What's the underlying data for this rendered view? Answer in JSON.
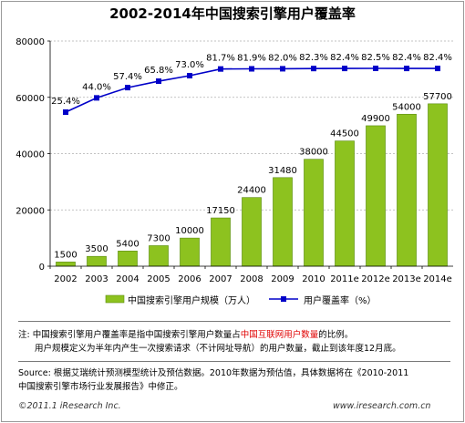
{
  "chart_data": {
    "type": "bar",
    "title": "2002-2014年中国搜索引擎用户覆盖率",
    "categories": [
      "2002",
      "2003",
      "2004",
      "2005",
      "2006",
      "2007",
      "2008",
      "2009",
      "2010",
      "2011e",
      "2012e",
      "2013e",
      "2014e"
    ],
    "series": [
      {
        "name": "中国搜索引擎用户规模（万人）",
        "type": "bar",
        "color": "#8dc21f",
        "values": [
          1500,
          3500,
          5400,
          7300,
          10000,
          17150,
          24400,
          31480,
          38000,
          44500,
          49900,
          54000,
          57700
        ],
        "labels": [
          "1500",
          "3500",
          "5400",
          "7300",
          "10000",
          "17150",
          "24400",
          "31480",
          "38000",
          "44500",
          "49900",
          "54000",
          "57700"
        ]
      },
      {
        "name": "用户覆盖率（%）",
        "type": "line",
        "color": "#0000c8",
        "values": [
          25.4,
          44.0,
          57.4,
          65.8,
          73.0,
          81.7,
          81.9,
          82.0,
          82.3,
          82.4,
          82.5,
          82.4,
          82.4
        ],
        "labels": [
          "25.4%",
          "44.0%",
          "57.4%",
          "65.8%",
          "73.0%",
          "81.7%",
          "81.9%",
          "82.0%",
          "82.3%",
          "82.4%",
          "82.5%",
          "82.4%",
          "82.4%"
        ]
      }
    ],
    "ylim": [
      0,
      80000
    ],
    "yticks": [
      "0",
      "20000",
      "40000",
      "60000",
      "80000"
    ],
    "grid": true,
    "legend": "bottom"
  },
  "notes": {
    "line1_a": "注: 中国搜索引擎用户覆盖率是指中国搜索引擎用户数量占",
    "line1_red": "中国互联网用户数量",
    "line1_b": "的比例。",
    "line2": "用户规模定义为半年内产生一次搜索请求（不计网址导航）的用户数量，截止到该年度12月底。",
    "source1": "Source: 根据艾瑞统计预测模型统计及预估数据。2010年数据为预估值，具体数据将在《2010-2011",
    "source2": "中国搜索引擎市场行业发展报告》中修正。"
  },
  "footer": {
    "copyright": "©2011.1 iResearch Inc.",
    "website": "www.iresearch.com.cn"
  }
}
